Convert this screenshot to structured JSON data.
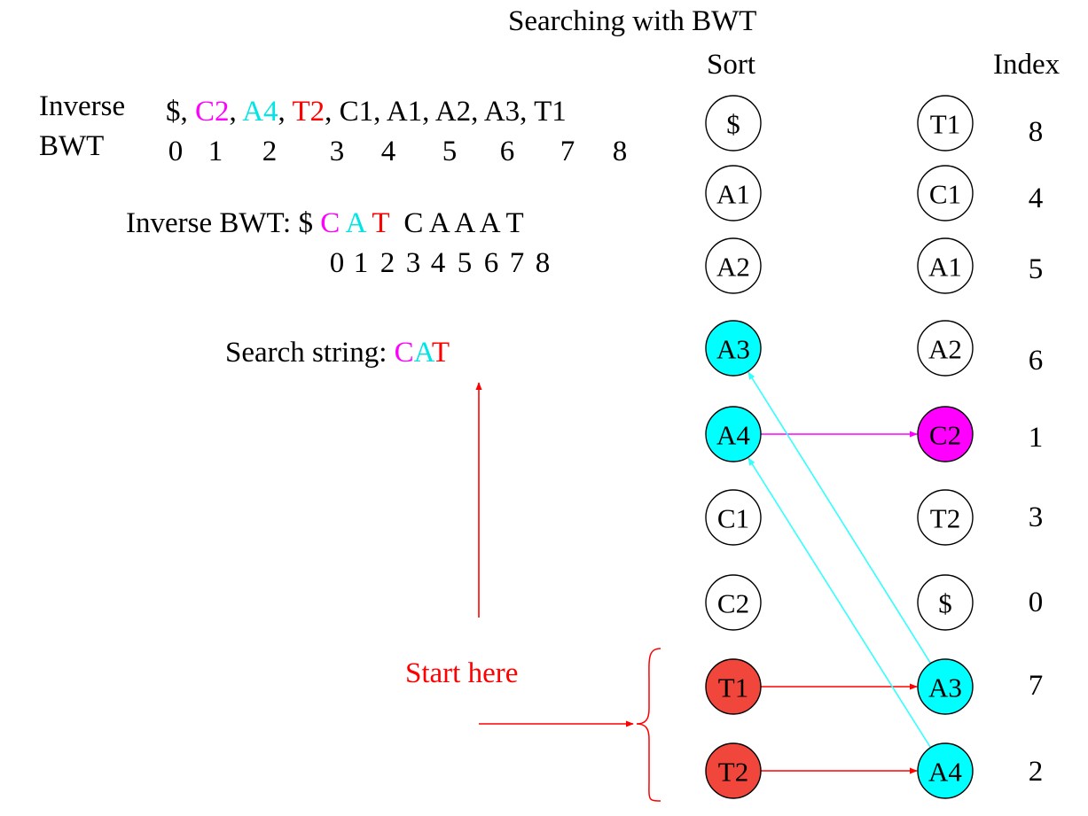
{
  "title": "Searching with BWT",
  "headers": {
    "sort": "Sort",
    "index": "Index"
  },
  "inverse_label_1": "Inverse",
  "inverse_label_2": "BWT",
  "inverse_row": [
    {
      "text": "$",
      "color": "#000000"
    },
    {
      "text": ", ",
      "color": "#000000"
    },
    {
      "text": "C2",
      "color": "#ff00ff"
    },
    {
      "text": ", ",
      "color": "#000000"
    },
    {
      "text": "A4",
      "color": "#00e5e5"
    },
    {
      "text": ", ",
      "color": "#000000"
    },
    {
      "text": "T2",
      "color": "#ff0000"
    },
    {
      "text": ", C1, A1, A2, A3, T1",
      "color": "#000000"
    }
  ],
  "inverse_indices": [
    "0",
    "1",
    "2",
    "3",
    "4",
    "5",
    "6",
    "7",
    "8"
  ],
  "inverse_bwt_line": {
    "label": "Inverse BWT: $",
    "letters": [
      {
        "text": "C",
        "color": "#ff00ff"
      },
      {
        "text": "A",
        "color": "#00e5e5"
      },
      {
        "text": "T",
        "color": "#ff0000"
      },
      {
        "text": "C",
        "color": "#000000"
      },
      {
        "text": "A",
        "color": "#000000"
      },
      {
        "text": "A",
        "color": "#000000"
      },
      {
        "text": "A",
        "color": "#000000"
      },
      {
        "text": "T",
        "color": "#000000"
      }
    ],
    "indices": [
      "0",
      "1",
      "2",
      "3",
      "4",
      "5",
      "6",
      "7",
      "8"
    ]
  },
  "search": {
    "label": "Search string: ",
    "letters": [
      {
        "text": "C",
        "color": "#ff00ff"
      },
      {
        "text": "A",
        "color": "#00e5e5"
      },
      {
        "text": "T",
        "color": "#ff0000"
      }
    ]
  },
  "start_here": "Start here",
  "colors": {
    "magenta": "#ff00ff",
    "cyan": "#00ffff",
    "cyan_line": "#33ffff",
    "red": "#ff0000",
    "red_fill": "#f0463c",
    "black": "#000000",
    "white": "#ffffff"
  },
  "sort_column": [
    {
      "label": "$",
      "fill": "white"
    },
    {
      "label": "A1",
      "fill": "white"
    },
    {
      "label": "A2",
      "fill": "white"
    },
    {
      "label": "A3",
      "fill": "cyan"
    },
    {
      "label": "A4",
      "fill": "cyan"
    },
    {
      "label": "C1",
      "fill": "white"
    },
    {
      "label": "C2",
      "fill": "white"
    },
    {
      "label": "T1",
      "fill": "red"
    },
    {
      "label": "T2",
      "fill": "red"
    }
  ],
  "bwt_column": [
    {
      "label": "T1",
      "fill": "white",
      "index": "8",
      "index_color": "black"
    },
    {
      "label": "C1",
      "fill": "white",
      "index": "4",
      "index_color": "black"
    },
    {
      "label": "A1",
      "fill": "white",
      "index": "5",
      "index_color": "black"
    },
    {
      "label": "A2",
      "fill": "white",
      "index": "6",
      "index_color": "black"
    },
    {
      "label": "C2",
      "fill": "magenta",
      "index": "1",
      "index_color": "magenta"
    },
    {
      "label": "T2",
      "fill": "white",
      "index": "3",
      "index_color": "black"
    },
    {
      "label": "$",
      "fill": "white",
      "index": "0",
      "index_color": "black"
    },
    {
      "label": "A3",
      "fill": "cyan",
      "index": "7",
      "index_color": "black"
    },
    {
      "label": "A4",
      "fill": "cyan",
      "index": "2",
      "index_color": "black"
    }
  ],
  "arrows": [
    {
      "from": "sort.4",
      "to": "bwt.4",
      "color": "magenta",
      "kind": "horizontal"
    },
    {
      "from": "sort.7",
      "to": "bwt.7",
      "color": "red",
      "kind": "horizontal"
    },
    {
      "from": "sort.8",
      "to": "bwt.8",
      "color": "red",
      "kind": "horizontal"
    },
    {
      "from": "bwt.7",
      "to": "sort.3",
      "color": "cyan_line",
      "kind": "diagonal"
    },
    {
      "from": "bwt.8",
      "to": "sort.4",
      "color": "cyan_line",
      "kind": "diagonal"
    }
  ]
}
